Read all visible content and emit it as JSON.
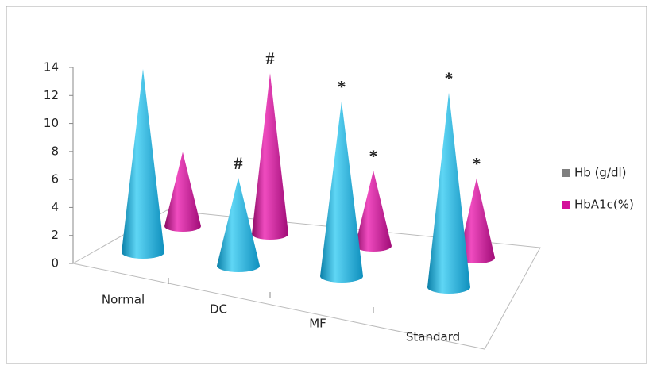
{
  "chart_data": {
    "type": "cone",
    "categories": [
      "Normal",
      "DC",
      "MF",
      "Standard"
    ],
    "series": [
      {
        "name": "Hb (g/dl)",
        "color": "#1ab3e0",
        "legend_color": "#7f7f7f",
        "values": [
          13.1,
          6.3,
          12.5,
          13.9
        ],
        "annotations": [
          null,
          "#",
          "*",
          "*"
        ]
      },
      {
        "name": "HbA1c(%)",
        "color": "#d4109a",
        "legend_color": "#d4109a",
        "values": [
          5.3,
          11.5,
          5.4,
          5.7
        ],
        "annotations": [
          null,
          "#",
          "*",
          "*"
        ]
      }
    ],
    "ylim": [
      0,
      14
    ],
    "yticks": [
      0,
      2,
      4,
      6,
      8,
      10,
      12,
      14
    ],
    "grid": false,
    "legend": "right"
  }
}
